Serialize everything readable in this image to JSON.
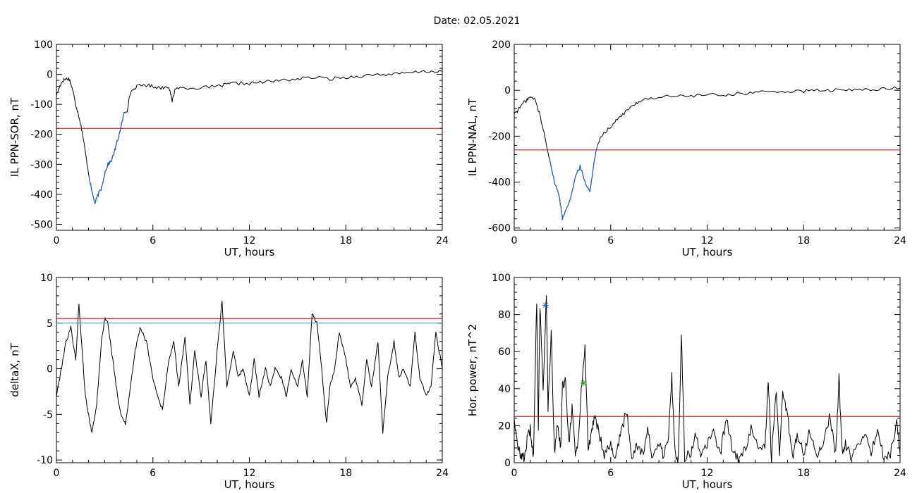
{
  "header": {
    "date_label": "Date:  02.05.2021"
  },
  "chart_data": [
    {
      "type": "line",
      "ylabel": "IL PPN-SOR, nT",
      "xlabel": "UT, hours",
      "xlim": [
        0,
        24
      ],
      "ylim": [
        -520,
        100
      ],
      "xticks": [
        0,
        6,
        12,
        18,
        24
      ],
      "yticks": [
        100,
        0,
        -100,
        -200,
        -300,
        -400,
        -500
      ],
      "threshold": {
        "value": -180,
        "color": "#dd0000"
      },
      "highlight": {
        "range": [
          2.0,
          4.2
        ],
        "color": "#1f5fd6"
      },
      "series": [
        {
          "color": "#000000",
          "x": [
            0,
            0.2,
            0.4,
            0.6,
            0.8,
            1.0,
            1.2,
            1.4,
            1.6,
            1.8,
            2.0,
            2.2,
            2.4,
            2.6,
            2.8,
            3.0,
            3.2,
            3.4,
            3.6,
            3.8,
            4.0,
            4.2,
            4.4,
            4.6,
            5.0,
            5.5,
            6.0,
            6.5,
            7.0,
            7.2,
            7.4,
            8.0,
            9.0,
            10.0,
            10.5,
            11.0,
            12.0,
            13.0,
            14.0,
            15.0,
            16.0,
            17.0,
            18.0,
            19.0,
            20.0,
            21.0,
            22.0,
            23.0,
            24.0
          ],
          "y": [
            -70,
            -40,
            -20,
            -15,
            -15,
            -50,
            -100,
            -140,
            -190,
            -260,
            -330,
            -390,
            -430,
            -400,
            -380,
            -330,
            -300,
            -290,
            -260,
            -220,
            -180,
            -130,
            -120,
            -60,
            -40,
            -35,
            -40,
            -45,
            -40,
            -90,
            -45,
            -45,
            -45,
            -40,
            -35,
            -30,
            -30,
            -25,
            -20,
            -15,
            -10,
            -15,
            -10,
            -5,
            0,
            0,
            5,
            10,
            10
          ]
        }
      ]
    },
    {
      "type": "line",
      "ylabel": "IL PPN-NAL, nT",
      "xlabel": "UT, hours",
      "xlim": [
        0,
        24
      ],
      "ylim": [
        -610,
        200
      ],
      "xticks": [
        0,
        6,
        12,
        18,
        24
      ],
      "yticks": [
        200,
        0,
        -200,
        -400,
        -600
      ],
      "threshold": {
        "value": -260,
        "color": "#dd0000"
      },
      "highlight": {
        "range": [
          2.2,
          5.2
        ],
        "color": "#1f5fd6"
      },
      "series": [
        {
          "color": "#000000",
          "x": [
            0,
            0.2,
            0.5,
            0.8,
            1.0,
            1.3,
            1.6,
            1.9,
            2.2,
            2.5,
            2.8,
            3.0,
            3.2,
            3.5,
            3.8,
            4.1,
            4.4,
            4.7,
            5.0,
            5.2,
            5.5,
            6.0,
            6.5,
            7.0,
            7.5,
            8.0,
            9.0,
            10.0,
            11.0,
            12.0,
            13.0,
            14.0,
            15.0,
            16.0,
            17.0,
            18.0,
            19.0,
            20.0,
            21.0,
            22.0,
            23.0,
            24.0
          ],
          "y": [
            -100,
            -90,
            -60,
            -40,
            -30,
            -40,
            -110,
            -200,
            -300,
            -400,
            -460,
            -560,
            -520,
            -470,
            -380,
            -330,
            -400,
            -440,
            -300,
            -230,
            -190,
            -160,
            -120,
            -90,
            -60,
            -40,
            -30,
            -25,
            -25,
            -20,
            -20,
            -15,
            -10,
            -5,
            -5,
            -5,
            0,
            0,
            0,
            5,
            5,
            10
          ]
        }
      ]
    },
    {
      "type": "line",
      "ylabel": "deltaX, nT",
      "xlabel": "UT, hours",
      "xlim": [
        0,
        24
      ],
      "ylim": [
        -10.3,
        10
      ],
      "xticks": [
        0,
        6,
        12,
        18,
        24
      ],
      "yticks": [
        10,
        5,
        0,
        -5,
        -10
      ],
      "thresholds": [
        {
          "value": 5.5,
          "color": "#dd0000"
        },
        {
          "value": 5.0,
          "color": "#2a9a9a"
        }
      ],
      "series": [
        {
          "color": "#000000",
          "x": [
            0,
            0.3,
            0.6,
            0.9,
            1.2,
            1.4,
            1.6,
            1.8,
            2.0,
            2.2,
            2.5,
            2.8,
            3.0,
            3.2,
            3.5,
            3.8,
            4.0,
            4.3,
            4.6,
            4.9,
            5.2,
            5.6,
            6.0,
            6.3,
            6.6,
            7.0,
            7.3,
            7.6,
            8.0,
            8.3,
            8.6,
            9.0,
            9.3,
            9.6,
            10.0,
            10.3,
            10.6,
            11.0,
            11.3,
            11.6,
            12.0,
            12.3,
            12.6,
            13.0,
            13.3,
            13.6,
            14.0,
            14.3,
            14.6,
            15.0,
            15.3,
            15.6,
            15.9,
            16.2,
            16.5,
            16.8,
            17.0,
            17.3,
            17.6,
            18.0,
            18.3,
            18.6,
            19.0,
            19.3,
            19.6,
            20.0,
            20.3,
            20.6,
            21.0,
            21.3,
            21.6,
            22.0,
            22.3,
            22.6,
            23.0,
            23.3,
            23.6,
            24.0
          ],
          "y": [
            -3,
            0,
            3,
            4.5,
            1,
            7,
            2,
            -3,
            -5,
            -7,
            -4,
            3,
            5.5,
            5,
            1,
            -3,
            -5,
            -6,
            -2,
            2,
            4.5,
            3,
            -1,
            -3,
            -4.5,
            1,
            3,
            -2,
            3.5,
            -4,
            2,
            -3,
            1,
            -6,
            2,
            7.5,
            -2,
            2,
            -1,
            0,
            -3,
            1,
            -3,
            0,
            -2,
            0,
            -1,
            -3,
            0,
            -2,
            1,
            -3,
            6,
            5,
            0,
            -6,
            -2,
            0,
            4,
            1,
            -2,
            -1,
            -4,
            1,
            -2,
            3,
            -7,
            -1,
            3,
            -1,
            0,
            -2,
            4,
            -1,
            -3,
            -2,
            4,
            0
          ]
        }
      ]
    },
    {
      "type": "line",
      "ylabel": "Hor. power, nT^2",
      "xlabel": "UT, hours",
      "xlim": [
        0,
        24
      ],
      "ylim": [
        0,
        100
      ],
      "xticks": [
        0,
        6,
        12,
        18,
        24
      ],
      "yticks": [
        100,
        80,
        60,
        40,
        20,
        0
      ],
      "threshold": {
        "value": 25,
        "color": "#dd0000"
      },
      "markers": [
        {
          "x": 1.95,
          "y": 85,
          "color": "#1f5fd6"
        },
        {
          "x": 4.3,
          "y": 43,
          "color": "#22aa22"
        }
      ],
      "series": [
        {
          "color": "#000000",
          "x": [
            0,
            0.2,
            0.4,
            0.6,
            0.8,
            1.0,
            1.2,
            1.4,
            1.5,
            1.6,
            1.8,
            2.0,
            2.1,
            2.3,
            2.5,
            2.7,
            2.9,
            3.0,
            3.2,
            3.4,
            3.6,
            3.8,
            4.0,
            4.2,
            4.4,
            4.6,
            4.8,
            5.0,
            5.3,
            5.6,
            6.0,
            6.3,
            6.6,
            7.0,
            7.3,
            7.6,
            8.0,
            8.3,
            8.6,
            9.0,
            9.3,
            9.6,
            9.8,
            10.0,
            10.2,
            10.4,
            10.6,
            11.0,
            11.3,
            11.6,
            12.0,
            12.4,
            12.8,
            13.2,
            13.6,
            14.0,
            14.4,
            14.8,
            15.2,
            15.6,
            15.8,
            16.0,
            16.3,
            16.5,
            16.7,
            17.0,
            17.3,
            17.6,
            18.0,
            18.4,
            18.8,
            19.2,
            19.6,
            20.0,
            20.2,
            20.4,
            20.6,
            21.0,
            21.4,
            21.8,
            22.2,
            22.6,
            23.0,
            23.4,
            23.8,
            24.0
          ],
          "y": [
            25,
            8,
            5,
            2,
            12,
            18,
            3,
            88,
            20,
            85,
            40,
            92,
            30,
            70,
            5,
            20,
            8,
            42,
            44,
            10,
            30,
            5,
            12,
            43,
            62,
            8,
            15,
            27,
            15,
            5,
            10,
            3,
            15,
            28,
            3,
            10,
            5,
            18,
            2,
            10,
            3,
            15,
            46,
            5,
            2,
            70,
            3,
            5,
            15,
            2,
            10,
            18,
            3,
            25,
            5,
            2,
            8,
            20,
            5,
            10,
            44,
            2,
            40,
            5,
            40,
            25,
            3,
            15,
            5,
            18,
            3,
            10,
            25,
            5,
            46,
            5,
            10,
            3,
            8,
            15,
            5,
            18,
            3,
            5,
            21,
            5
          ]
        }
      ]
    }
  ]
}
